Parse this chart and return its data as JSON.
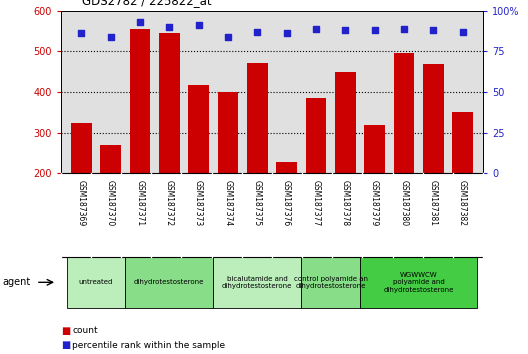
{
  "title": "GDS2782 / 225822_at",
  "samples": [
    "GSM187369",
    "GSM187370",
    "GSM187371",
    "GSM187372",
    "GSM187373",
    "GSM187374",
    "GSM187375",
    "GSM187376",
    "GSM187377",
    "GSM187378",
    "GSM187379",
    "GSM187380",
    "GSM187381",
    "GSM187382"
  ],
  "counts": [
    325,
    270,
    555,
    545,
    418,
    400,
    472,
    228,
    385,
    448,
    318,
    495,
    468,
    350
  ],
  "percentiles": [
    86,
    84,
    93,
    90,
    91,
    84,
    87,
    86,
    89,
    88,
    88,
    89,
    88,
    87
  ],
  "ylim_left": [
    200,
    600
  ],
  "ylim_right": [
    0,
    100
  ],
  "yticks_left": [
    200,
    300,
    400,
    500,
    600
  ],
  "yticks_right": [
    0,
    25,
    50,
    75,
    100
  ],
  "bar_color": "#CC0000",
  "dot_color": "#2222CC",
  "plot_bg": "#E0E0E0",
  "sample_bg": "#C8C8C8",
  "groups": [
    {
      "label": "untreated",
      "indices": [
        0,
        1
      ],
      "color": "#BBEEBB"
    },
    {
      "label": "dihydrotestosterone",
      "indices": [
        2,
        3,
        4
      ],
      "color": "#88DD88"
    },
    {
      "label": "bicalutamide and\ndihydrotestosterone",
      "indices": [
        5,
        6,
        7
      ],
      "color": "#BBEEBB"
    },
    {
      "label": "control polyamide an\ndihydrotestosterone",
      "indices": [
        8,
        9
      ],
      "color": "#88DD88"
    },
    {
      "label": "WGWWCW\npolyamide and\ndihydrotestosterone",
      "indices": [
        10,
        11,
        12,
        13
      ],
      "color": "#44CC44"
    }
  ],
  "legend_count_label": "count",
  "legend_percentile_label": "percentile rank within the sample",
  "agent_label": "agent",
  "grid_dotted_at": [
    300,
    400,
    500
  ]
}
